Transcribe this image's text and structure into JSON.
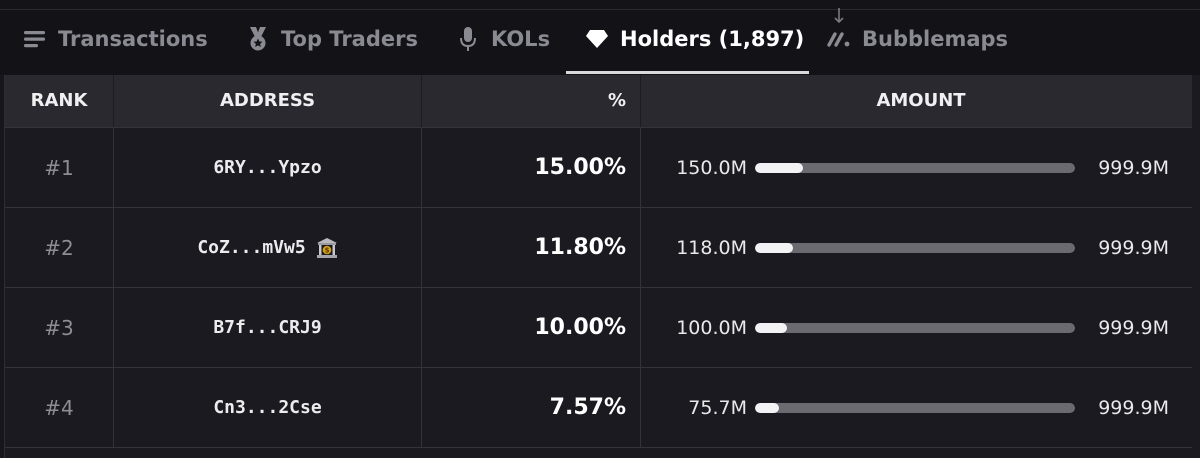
{
  "tabs": [
    {
      "label": "Transactions",
      "icon": "list-icon"
    },
    {
      "label": "Top Traders",
      "icon": "medal-icon"
    },
    {
      "label": "KOLs",
      "icon": "microphone-icon"
    },
    {
      "label": "Holders (1,897)",
      "icon": "diamond-icon",
      "active": true
    },
    {
      "label": "Bubblemaps",
      "icon": "bubblemaps-icon"
    }
  ],
  "table": {
    "headers": {
      "rank": "RANK",
      "address": "ADDRESS",
      "percent": "%",
      "amount": "AMOUNT"
    },
    "rows": [
      {
        "rank": "#1",
        "address": "6RY...Ypzo",
        "exchange": false,
        "percent": "15.00%",
        "amount": "150.0M",
        "max": "999.9M",
        "fraction": 0.15
      },
      {
        "rank": "#2",
        "address": "CoZ...mVw5",
        "exchange": true,
        "percent": "11.80%",
        "amount": "118.0M",
        "max": "999.9M",
        "fraction": 0.118
      },
      {
        "rank": "#3",
        "address": "B7f...CRJ9",
        "exchange": false,
        "percent": "10.00%",
        "amount": "100.0M",
        "max": "999.9M",
        "fraction": 0.1
      },
      {
        "rank": "#4",
        "address": "Cn3...2Cse",
        "exchange": false,
        "percent": "7.57%",
        "amount": "75.7M",
        "max": "999.9M",
        "fraction": 0.0757
      }
    ]
  },
  "colors": {
    "active_tab": "#ffffff",
    "inactive_tab": "#8a8a92",
    "bar_fill": "#f3f3f5",
    "bar_track": "#6a6a70",
    "exchange_badge": "#d4a017"
  }
}
